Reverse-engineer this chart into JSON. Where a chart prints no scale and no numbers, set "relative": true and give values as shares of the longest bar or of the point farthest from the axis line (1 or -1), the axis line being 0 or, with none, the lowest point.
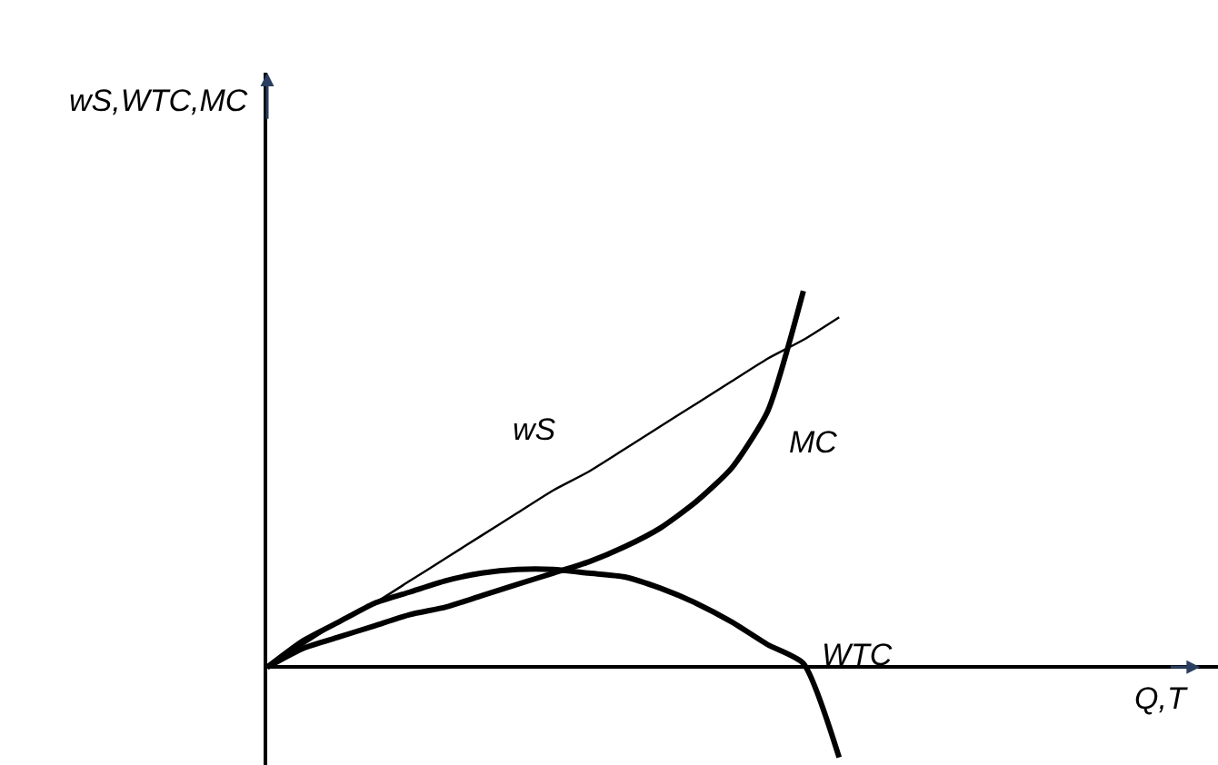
{
  "chart_data": {
    "type": "line",
    "relative": true,
    "annotations": [
      "wS,WTC,MC",
      "Q,T"
    ],
    "categories": [
      null,
      null,
      null,
      null,
      null,
      null,
      null,
      null,
      null,
      null,
      null,
      null,
      null,
      null,
      null,
      null,
      null
    ],
    "series": [
      {
        "name": "wS",
        "color": "#000000",
        "values": [
          0,
          0.06,
          0.12,
          0.17,
          0.23,
          0.29,
          0.35,
          0.41,
          0.47,
          0.52,
          0.58,
          0.64,
          0.7,
          0.76,
          0.82,
          0.87,
          0.93
        ]
      },
      {
        "name": "MC",
        "color": "#000000",
        "values": [
          0,
          0.05,
          0.08,
          0.11,
          0.14,
          0.16,
          0.19,
          0.22,
          0.25,
          0.28,
          0.32,
          0.37,
          0.44,
          0.53,
          0.68,
          1.0,
          null
        ]
      },
      {
        "name": "WTC",
        "color": "#000000",
        "values": [
          0,
          0.07,
          0.12,
          0.17,
          0.2,
          0.23,
          0.25,
          0.26,
          0.26,
          0.25,
          0.24,
          0.21,
          0.17,
          0.12,
          0.06,
          0.01,
          -0.24
        ]
      }
    ],
    "legend": false,
    "marker": "none",
    "line_style": "solid"
  }
}
